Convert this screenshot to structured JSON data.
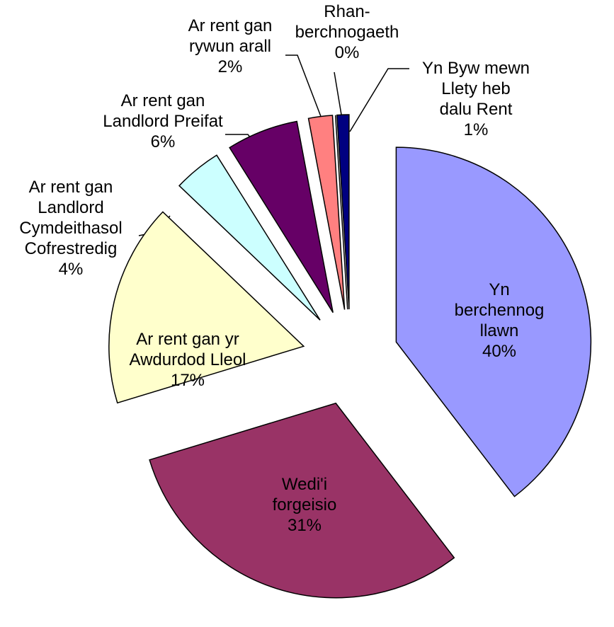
{
  "chart_data": {
    "type": "pie",
    "categories": [
      "Yn berchennog\nllawn",
      "Wedi'i\nforgeisio",
      "Ar rent gan yr\nAwdurdod Lleol",
      "Ar rent gan\nLandlord\nCymdeithasol\nCofrestredig",
      "Ar rent gan\nLandlord Preifat",
      "Ar rent gan\nrywun arall",
      "Rhan-\nberchnogaeth",
      "Yn Byw mewn\nLlety heb\ndalu Rent"
    ],
    "values": [
      40,
      31,
      17,
      4,
      6,
      2,
      0,
      1
    ],
    "value_labels": [
      "40%",
      "31%",
      "17%",
      "4%",
      "6%",
      "2%",
      "0%",
      "1%"
    ],
    "colors": [
      "#9999ff",
      "#993366",
      "#ffffcc",
      "#ccffff",
      "#660066",
      "#ff8080",
      "#3366cc",
      "#000080"
    ]
  }
}
